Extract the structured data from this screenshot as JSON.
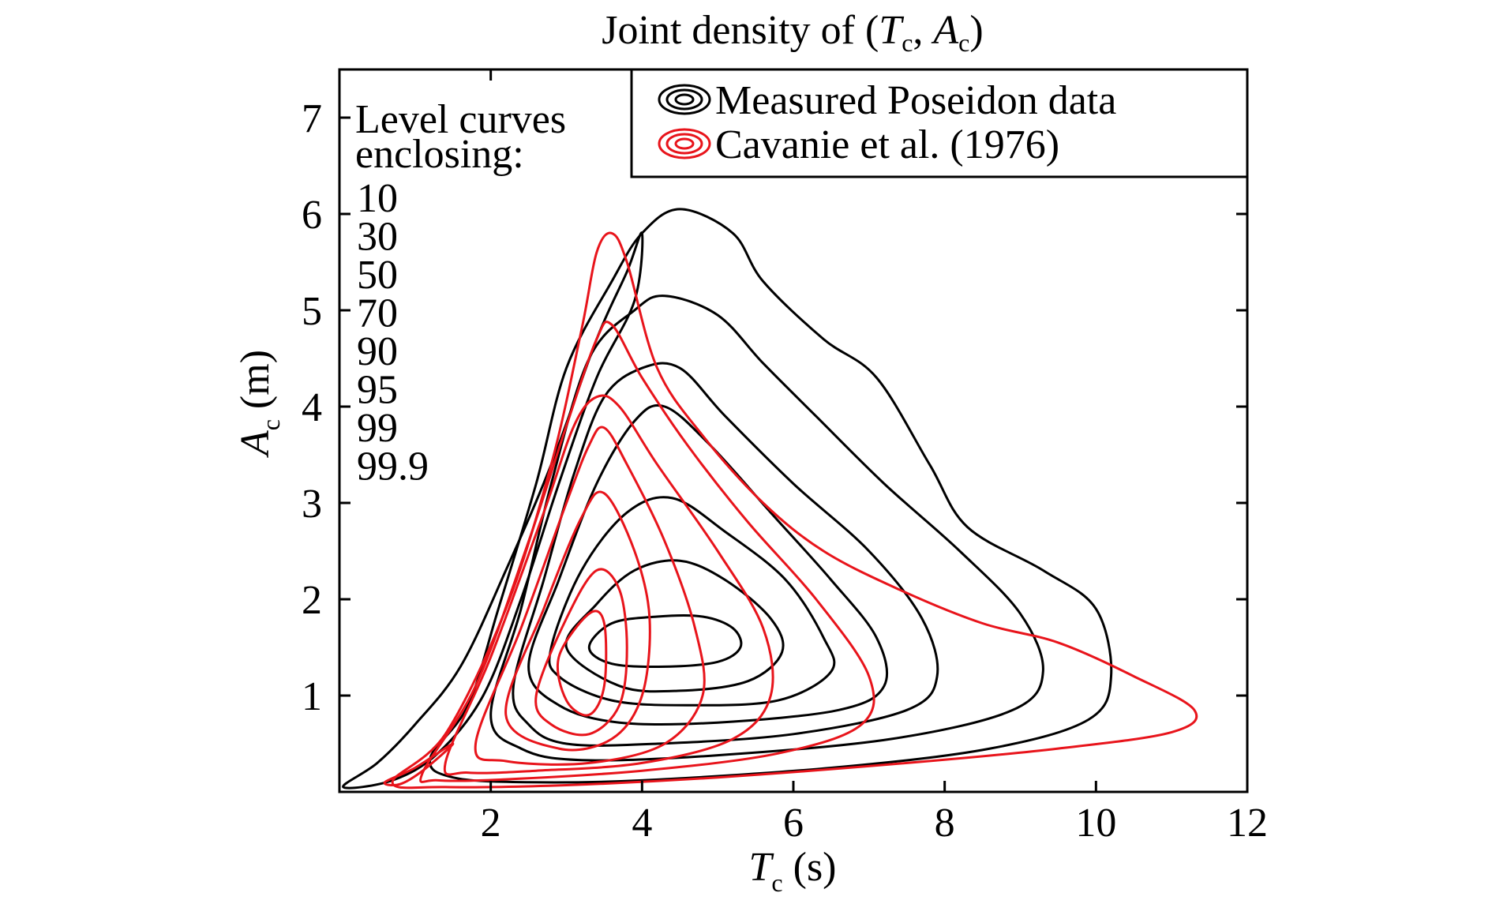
{
  "chart_data": {
    "type": "contour",
    "title": {
      "prefix": "Joint density of (",
      "var1": "T",
      "var1_sub": "c",
      "sep": ", ",
      "var2": "A",
      "var2_sub": "c",
      "suffix": ")"
    },
    "xlabel": {
      "var": "T",
      "sub": "c",
      "unit": " (s)"
    },
    "ylabel": {
      "var": "A",
      "sub": "c",
      "unit": " (m)"
    },
    "xlim": [
      0,
      12
    ],
    "ylim": [
      0,
      7.5
    ],
    "xticks": [
      2,
      4,
      6,
      8,
      10,
      12
    ],
    "yticks": [
      1,
      2,
      3,
      4,
      5,
      6,
      7
    ],
    "grid": false,
    "level_label": {
      "line1": "Level curves",
      "line2": "enclosing:",
      "levels": [
        "10",
        "30",
        "50",
        "70",
        "90",
        "95",
        "99",
        "99.9"
      ]
    },
    "legend": {
      "position": "top-right",
      "entries": [
        {
          "label": "Measured Poseidon data",
          "color": "#000000"
        },
        {
          "label": "Cavanie et al. (1976)",
          "color": "#e8141b"
        }
      ]
    },
    "series": [
      {
        "name": "Measured Poseidon data",
        "color": "#000000",
        "contours": [
          {
            "level": "10",
            "points": [
              [
                3.3,
                1.5
              ],
              [
                3.6,
                1.75
              ],
              [
                4.2,
                1.82
              ],
              [
                4.8,
                1.82
              ],
              [
                5.2,
                1.7
              ],
              [
                5.3,
                1.5
              ],
              [
                5.0,
                1.35
              ],
              [
                4.3,
                1.3
              ],
              [
                3.6,
                1.33
              ],
              [
                3.3,
                1.5
              ]
            ]
          },
          {
            "level": "30",
            "points": [
              [
                3.0,
                1.5
              ],
              [
                3.4,
                1.95
              ],
              [
                3.9,
                2.3
              ],
              [
                4.5,
                2.4
              ],
              [
                5.1,
                2.2
              ],
              [
                5.7,
                1.8
              ],
              [
                5.85,
                1.45
              ],
              [
                5.4,
                1.15
              ],
              [
                4.5,
                1.05
              ],
              [
                3.7,
                1.1
              ],
              [
                3.0,
                1.5
              ]
            ]
          },
          {
            "level": "50",
            "points": [
              [
                2.8,
                1.5
              ],
              [
                3.2,
                2.3
              ],
              [
                3.8,
                2.9
              ],
              [
                4.4,
                3.05
              ],
              [
                5.1,
                2.7
              ],
              [
                5.9,
                2.2
              ],
              [
                6.4,
                1.6
              ],
              [
                6.5,
                1.25
              ],
              [
                5.8,
                0.95
              ],
              [
                4.6,
                0.9
              ],
              [
                3.6,
                0.95
              ],
              [
                2.9,
                1.2
              ],
              [
                2.8,
                1.5
              ]
            ]
          },
          {
            "level": "70",
            "points": [
              [
                2.5,
                1.3
              ],
              [
                2.9,
                2.2
              ],
              [
                3.4,
                3.2
              ],
              [
                3.9,
                3.85
              ],
              [
                4.3,
                4.0
              ],
              [
                4.9,
                3.6
              ],
              [
                5.7,
                2.9
              ],
              [
                6.5,
                2.2
              ],
              [
                7.1,
                1.6
              ],
              [
                7.2,
                1.1
              ],
              [
                6.6,
                0.85
              ],
              [
                5.0,
                0.72
              ],
              [
                3.7,
                0.72
              ],
              [
                2.9,
                0.9
              ],
              [
                2.5,
                1.3
              ]
            ]
          },
          {
            "level": "90",
            "points": [
              [
                2.3,
                1.1
              ],
              [
                2.7,
                2.2
              ],
              [
                3.1,
                3.3
              ],
              [
                3.5,
                4.1
              ],
              [
                4.0,
                4.4
              ],
              [
                4.5,
                4.4
              ],
              [
                5.1,
                3.9
              ],
              [
                6.0,
                3.2
              ],
              [
                7.0,
                2.5
              ],
              [
                7.7,
                1.8
              ],
              [
                7.9,
                1.2
              ],
              [
                7.5,
                0.85
              ],
              [
                6.0,
                0.6
              ],
              [
                4.2,
                0.5
              ],
              [
                3.0,
                0.5
              ],
              [
                2.5,
                0.7
              ],
              [
                2.3,
                1.1
              ]
            ]
          },
          {
            "level": "95",
            "points": [
              [
                2.0,
                0.8
              ],
              [
                2.4,
                1.9
              ],
              [
                2.8,
                3.2
              ],
              [
                3.3,
                4.5
              ],
              [
                3.9,
                5.0
              ],
              [
                4.3,
                5.15
              ],
              [
                5.0,
                4.95
              ],
              [
                5.6,
                4.45
              ],
              [
                6.3,
                3.9
              ],
              [
                7.2,
                3.2
              ],
              [
                8.2,
                2.5
              ],
              [
                9.0,
                1.85
              ],
              [
                9.3,
                1.25
              ],
              [
                8.9,
                0.85
              ],
              [
                7.3,
                0.55
              ],
              [
                5.0,
                0.38
              ],
              [
                3.2,
                0.33
              ],
              [
                2.4,
                0.45
              ],
              [
                2.0,
                0.8
              ]
            ]
          },
          {
            "level": "99",
            "points": [
              [
                1.2,
                0.35
              ],
              [
                1.7,
                0.9
              ],
              [
                2.1,
                1.9
              ],
              [
                2.6,
                3.2
              ],
              [
                3.0,
                4.4
              ],
              [
                3.6,
                5.3
              ],
              [
                4.0,
                5.8
              ],
              [
                4.5,
                6.05
              ],
              [
                5.2,
                5.8
              ],
              [
                5.6,
                5.3
              ],
              [
                6.4,
                4.7
              ],
              [
                7.1,
                4.3
              ],
              [
                7.8,
                3.4
              ],
              [
                8.3,
                2.75
              ],
              [
                9.3,
                2.3
              ],
              [
                10.0,
                1.9
              ],
              [
                10.2,
                1.2
              ],
              [
                9.9,
                0.75
              ],
              [
                8.6,
                0.45
              ],
              [
                6.5,
                0.25
              ],
              [
                4.0,
                0.12
              ],
              [
                2.5,
                0.1
              ],
              [
                1.5,
                0.15
              ],
              [
                1.2,
                0.35
              ]
            ]
          },
          {
            "level": "99.9",
            "points": [
              [
                0.05,
                0.05
              ],
              [
                0.5,
                0.3
              ],
              [
                1.0,
                0.7
              ],
              [
                1.6,
                1.3
              ],
              [
                2.2,
                2.3
              ],
              [
                2.8,
                3.4
              ],
              [
                3.4,
                4.7
              ],
              [
                3.8,
                5.4
              ],
              [
                4.0,
                5.8
              ],
              [
                3.9,
                5.1
              ],
              [
                3.4,
                4.3
              ],
              [
                2.9,
                3.2
              ],
              [
                2.4,
                2.0
              ],
              [
                1.9,
                1.0
              ],
              [
                1.3,
                0.4
              ],
              [
                0.7,
                0.12
              ],
              [
                0.05,
                0.05
              ]
            ]
          }
        ]
      },
      {
        "name": "Cavanie et al. (1976)",
        "color": "#e8141b",
        "contours": [
          {
            "level": "10",
            "points": [
              [
                2.9,
                1.4
              ],
              [
                3.3,
                1.85
              ],
              [
                3.5,
                1.75
              ],
              [
                3.5,
                1.1
              ],
              [
                3.3,
                0.8
              ],
              [
                3.0,
                0.95
              ],
              [
                2.9,
                1.4
              ]
            ]
          },
          {
            "level": "30",
            "points": [
              [
                2.6,
                1.0
              ],
              [
                3.0,
                1.8
              ],
              [
                3.4,
                2.3
              ],
              [
                3.7,
                2.1
              ],
              [
                3.8,
                1.5
              ],
              [
                3.7,
                0.9
              ],
              [
                3.3,
                0.6
              ],
              [
                2.8,
                0.7
              ],
              [
                2.6,
                1.0
              ]
            ]
          },
          {
            "level": "50",
            "points": [
              [
                2.2,
                0.8
              ],
              [
                2.7,
                1.9
              ],
              [
                3.2,
                2.85
              ],
              [
                3.5,
                3.1
              ],
              [
                3.9,
                2.5
              ],
              [
                4.1,
                1.8
              ],
              [
                4.0,
                1.0
              ],
              [
                3.6,
                0.55
              ],
              [
                2.9,
                0.45
              ],
              [
                2.2,
                0.8
              ]
            ]
          },
          {
            "level": "70",
            "points": [
              [
                1.8,
                0.5
              ],
              [
                2.4,
                1.7
              ],
              [
                3.0,
                3.0
              ],
              [
                3.3,
                3.6
              ],
              [
                3.5,
                3.78
              ],
              [
                3.8,
                3.4
              ],
              [
                4.3,
                2.6
              ],
              [
                4.7,
                1.7
              ],
              [
                4.8,
                1.0
              ],
              [
                4.3,
                0.5
              ],
              [
                3.3,
                0.3
              ],
              [
                2.2,
                0.32
              ],
              [
                1.8,
                0.5
              ]
            ]
          },
          {
            "level": "90",
            "points": [
              [
                1.4,
                0.3
              ],
              [
                2.0,
                1.4
              ],
              [
                2.7,
                2.9
              ],
              [
                3.1,
                3.8
              ],
              [
                3.4,
                4.1
              ],
              [
                3.7,
                4.0
              ],
              [
                4.2,
                3.4
              ],
              [
                5.0,
                2.5
              ],
              [
                5.6,
                1.7
              ],
              [
                5.7,
                1.0
              ],
              [
                5.2,
                0.55
              ],
              [
                4.0,
                0.3
              ],
              [
                2.6,
                0.22
              ],
              [
                1.7,
                0.2
              ],
              [
                1.4,
                0.3
              ]
            ]
          },
          {
            "level": "95",
            "points": [
              [
                1.1,
                0.2
              ],
              [
                1.8,
                1.1
              ],
              [
                2.5,
                2.6
              ],
              [
                3.0,
                3.8
              ],
              [
                3.4,
                4.7
              ],
              [
                3.6,
                4.85
              ],
              [
                4.0,
                4.3
              ],
              [
                4.6,
                3.6
              ],
              [
                5.4,
                2.8
              ],
              [
                6.3,
                2.0
              ],
              [
                7.0,
                1.2
              ],
              [
                6.9,
                0.7
              ],
              [
                5.8,
                0.4
              ],
              [
                4.0,
                0.22
              ],
              [
                2.2,
                0.13
              ],
              [
                1.3,
                0.12
              ],
              [
                1.1,
                0.2
              ]
            ]
          },
          {
            "level": "99",
            "points": [
              [
                0.7,
                0.1
              ],
              [
                1.4,
                0.6
              ],
              [
                2.2,
                1.9
              ],
              [
                2.8,
                3.4
              ],
              [
                3.2,
                4.8
              ],
              [
                3.4,
                5.6
              ],
              [
                3.6,
                5.8
              ],
              [
                3.8,
                5.5
              ],
              [
                4.2,
                4.4
              ],
              [
                4.8,
                3.7
              ],
              [
                5.6,
                3.0
              ],
              [
                6.4,
                2.5
              ],
              [
                7.4,
                2.1
              ],
              [
                8.5,
                1.75
              ],
              [
                9.5,
                1.55
              ],
              [
                10.5,
                1.2
              ],
              [
                11.3,
                0.85
              ],
              [
                11.0,
                0.62
              ],
              [
                9.5,
                0.45
              ],
              [
                7.5,
                0.3
              ],
              [
                5.0,
                0.15
              ],
              [
                3.0,
                0.07
              ],
              [
                1.4,
                0.05
              ],
              [
                0.7,
                0.1
              ]
            ]
          },
          {
            "level": "99.9",
            "points": [
              [
                0.6,
                0.1
              ],
              [
                1.0,
                0.25
              ],
              [
                1.5,
                0.5
              ],
              [
                1.1,
                0.22
              ],
              [
                0.8,
                0.08
              ],
              [
                0.6,
                0.1
              ]
            ]
          }
        ]
      }
    ]
  }
}
